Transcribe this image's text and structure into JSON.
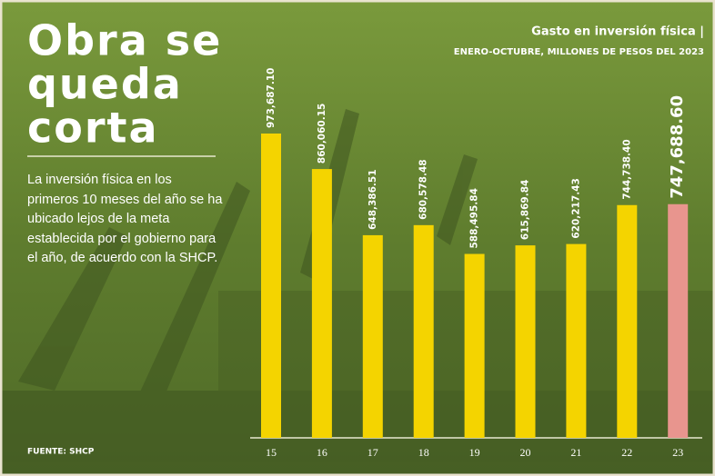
{
  "chart_data": {
    "type": "bar",
    "headline": [
      "Obra se",
      "queda",
      "corta"
    ],
    "description": "La inversión física en los primeros 10 meses del año se ha ubicado lejos de la meta establecida por el gobierno para el año, de acuerdo con la SHCP.",
    "source": "FUENTE: SHCP",
    "title": "Gasto en inversión física |",
    "subtitle": "ENERO-OCTUBRE, MILLONES DE PESOS DEL 2023",
    "categories": [
      "15",
      "16",
      "17",
      "18",
      "19",
      "20",
      "21",
      "22",
      "23"
    ],
    "values": [
      973687.1,
      860060.15,
      648386.51,
      680578.48,
      588495.84,
      615869.84,
      620217.43,
      744738.4,
      747688.6
    ],
    "value_labels": [
      "973,687.10",
      "860,060.15",
      "648,386.51",
      "680,578.48",
      "588,495.84",
      "615,869.84",
      "620,217.43",
      "744,738.40",
      "747,688.60"
    ],
    "colors": [
      "#f4d400",
      "#f4d400",
      "#f4d400",
      "#f4d400",
      "#f4d400",
      "#f4d400",
      "#f4d400",
      "#f4d400",
      "#e8958e"
    ]
  }
}
